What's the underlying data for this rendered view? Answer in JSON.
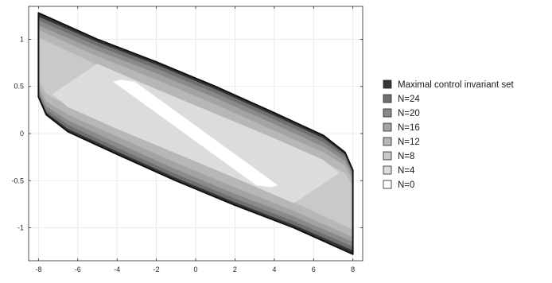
{
  "chart_data": {
    "type": "area",
    "title": "",
    "xlabel": "",
    "ylabel": "",
    "xlim": [
      -8.5,
      8.5
    ],
    "ylim": [
      -1.35,
      1.35
    ],
    "xticks": [
      -8,
      -6,
      -4,
      -2,
      0,
      2,
      4,
      6,
      8
    ],
    "yticks": [
      -1,
      -0.5,
      0,
      0.5,
      1
    ],
    "ytick_labels": [
      "-1",
      "-0.5",
      "0",
      "0.5",
      "1"
    ],
    "grid": true,
    "legend_position": "right",
    "series": [
      {
        "name": "Maximal control invariant set",
        "color": "#353535",
        "polygon": [
          [
            -8,
            1.28
          ],
          [
            -5,
            1.0
          ],
          [
            -2,
            0.76
          ],
          [
            1,
            0.5
          ],
          [
            4,
            0.22
          ],
          [
            6.5,
            -0.02
          ],
          [
            7.6,
            -0.2
          ],
          [
            8,
            -0.39
          ],
          [
            8,
            -1.28
          ],
          [
            5,
            -1.0
          ],
          [
            2,
            -0.76
          ],
          [
            -1,
            -0.5
          ],
          [
            -4,
            -0.22
          ],
          [
            -6.5,
            0.02
          ],
          [
            -7.6,
            0.2
          ],
          [
            -8,
            0.39
          ]
        ]
      },
      {
        "name": "N=24",
        "color": "#6f6f6f",
        "polygon": [
          [
            -8,
            1.24
          ],
          [
            -5,
            0.97
          ],
          [
            -2,
            0.73
          ],
          [
            1,
            0.47
          ],
          [
            4,
            0.19
          ],
          [
            6.5,
            -0.05
          ],
          [
            7.6,
            -0.22
          ],
          [
            8,
            -0.4
          ],
          [
            8,
            -1.24
          ],
          [
            5,
            -0.97
          ],
          [
            2,
            -0.73
          ],
          [
            -1,
            -0.47
          ],
          [
            -4,
            -0.19
          ],
          [
            -6.5,
            0.05
          ],
          [
            -7.6,
            0.22
          ],
          [
            -8,
            0.4
          ]
        ]
      },
      {
        "name": "N=20",
        "color": "#8a8a8a",
        "polygon": [
          [
            -8,
            1.2
          ],
          [
            -5,
            0.93
          ],
          [
            -2,
            0.69
          ],
          [
            1,
            0.43
          ],
          [
            4,
            0.15
          ],
          [
            6.5,
            -0.09
          ],
          [
            7.6,
            -0.25
          ],
          [
            8,
            -0.42
          ],
          [
            8,
            -1.2
          ],
          [
            5,
            -0.93
          ],
          [
            2,
            -0.69
          ],
          [
            -1,
            -0.43
          ],
          [
            -4,
            -0.15
          ],
          [
            -6.5,
            0.09
          ],
          [
            -7.6,
            0.25
          ],
          [
            -8,
            0.42
          ]
        ]
      },
      {
        "name": "N=16",
        "color": "#a3a3a3",
        "polygon": [
          [
            -8,
            1.15
          ],
          [
            -5,
            0.88
          ],
          [
            -2,
            0.64
          ],
          [
            1,
            0.38
          ],
          [
            4,
            0.1
          ],
          [
            6.5,
            -0.14
          ],
          [
            7.6,
            -0.29
          ],
          [
            8,
            -0.45
          ],
          [
            8,
            -1.15
          ],
          [
            5,
            -0.88
          ],
          [
            2,
            -0.64
          ],
          [
            -1,
            -0.38
          ],
          [
            -4,
            -0.1
          ],
          [
            -6.5,
            0.14
          ],
          [
            -7.6,
            0.29
          ],
          [
            -8,
            0.45
          ]
        ]
      },
      {
        "name": "N=12",
        "color": "#b7b7b7",
        "polygon": [
          [
            -8,
            1.1
          ],
          [
            -5,
            0.82
          ],
          [
            -2,
            0.57
          ],
          [
            1,
            0.31
          ],
          [
            4,
            0.03
          ],
          [
            6.5,
            -0.2
          ],
          [
            7.6,
            -0.34
          ],
          [
            8,
            -0.5
          ],
          [
            8,
            -1.1
          ],
          [
            5,
            -0.82
          ],
          [
            2,
            -0.57
          ],
          [
            -1,
            -0.31
          ],
          [
            -4,
            -0.03
          ],
          [
            -6.5,
            0.2
          ],
          [
            -7.6,
            0.34
          ],
          [
            -8,
            0.5
          ]
        ]
      },
      {
        "name": "N=8",
        "color": "#c9c9c9",
        "polygon": [
          [
            -8,
            1.02
          ],
          [
            -5,
            0.73
          ],
          [
            -2,
            0.47
          ],
          [
            1,
            0.21
          ],
          [
            4,
            -0.07
          ],
          [
            6.5,
            -0.3
          ],
          [
            7.6,
            -0.42
          ],
          [
            8,
            -0.56
          ],
          [
            8,
            -1.02
          ],
          [
            5,
            -0.73
          ],
          [
            2,
            -0.47
          ],
          [
            -1,
            -0.21
          ],
          [
            -4,
            0.07
          ],
          [
            -6.5,
            0.3
          ],
          [
            -7.6,
            0.42
          ],
          [
            -8,
            0.56
          ]
        ]
      },
      {
        "name": "N=4",
        "color": "#dcdcdc",
        "polygon": [
          [
            -5,
            0.74
          ],
          [
            -2,
            0.47
          ],
          [
            1,
            0.21
          ],
          [
            4,
            -0.05
          ],
          [
            6.5,
            -0.28
          ],
          [
            7.3,
            -0.42
          ],
          [
            5,
            -0.74
          ],
          [
            2,
            -0.47
          ],
          [
            -1,
            -0.21
          ],
          [
            -4,
            0.05
          ],
          [
            -6.5,
            0.28
          ],
          [
            -7.3,
            0.42
          ]
        ]
      },
      {
        "name": "N=0",
        "color": "#ffffff",
        "polygon": [
          [
            -4.2,
            0.55
          ],
          [
            -3.8,
            0.57
          ],
          [
            -3.1,
            0.55
          ],
          [
            4.2,
            -0.55
          ],
          [
            3.8,
            -0.57
          ],
          [
            3.1,
            -0.55
          ]
        ]
      }
    ]
  }
}
